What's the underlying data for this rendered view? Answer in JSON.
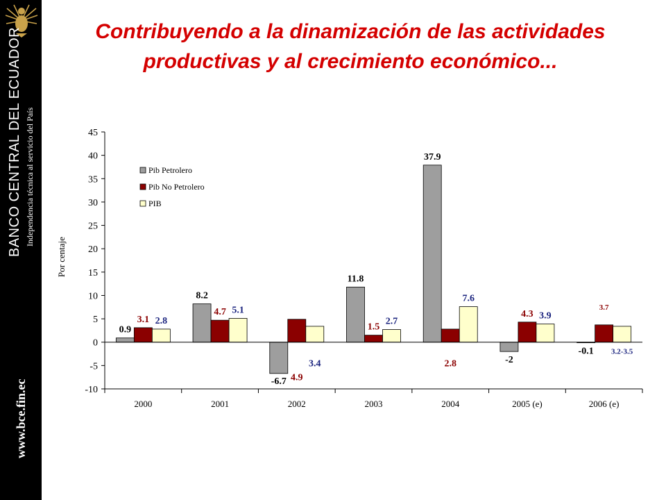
{
  "header": {
    "title": "Contribuyendo a la dinamización de las actividades productivas y al crecimiento económico..."
  },
  "sidebar": {
    "bank_name": "BANCO CENTRAL DEL ECUADOR",
    "tagline": "Independencia técnica al servicio del País",
    "website": "www.bce.fin.ec",
    "logo_icon": "condor-seal-icon",
    "background": "#000000"
  },
  "chart_data": {
    "type": "bar",
    "title": "",
    "xlabel": "",
    "ylabel": "Por centaje",
    "ylim": [
      -10,
      45
    ],
    "yticks": [
      "45",
      "40",
      "35",
      "30",
      "25",
      "20",
      "15",
      "10",
      "5",
      "0",
      "-5",
      "-10"
    ],
    "ytick_values": [
      45,
      40,
      35,
      30,
      25,
      20,
      15,
      10,
      5,
      0,
      -5,
      -10
    ],
    "categories": [
      "2000",
      "2001",
      "2002",
      "2003",
      "2004",
      "2005 (e)",
      "2006 (e)"
    ],
    "series": [
      {
        "name": "Pib Petrolero",
        "color": "#9e9e9e",
        "values": [
          0.9,
          8.2,
          -6.7,
          11.8,
          37.9,
          -2,
          -0.1
        ]
      },
      {
        "name": "Pib No Petrolero",
        "color": "#8b0000",
        "values": [
          3.1,
          4.7,
          4.9,
          1.5,
          2.8,
          4.3,
          3.7
        ]
      },
      {
        "name": "PIB",
        "color": "#ffffcc",
        "values": [
          2.8,
          5.1,
          3.4,
          2.7,
          7.6,
          3.9,
          3.4
        ]
      }
    ],
    "data_labels": [
      [
        "0.9",
        "8.2",
        "-6.7",
        "11.8",
        "37.9",
        "-2",
        "-0.1"
      ],
      [
        "3.1",
        "4.7",
        "4.9",
        "1.5",
        "2.8",
        "4.3",
        "3.7"
      ],
      [
        "2.8",
        "5.1",
        "3.4",
        "2.7",
        "7.6",
        "3.9",
        "3.2-3.5"
      ]
    ],
    "label_colors": [
      "#000000",
      "#8b0000",
      "#1a237e"
    ],
    "legend_position": "top-left",
    "grid": false
  }
}
